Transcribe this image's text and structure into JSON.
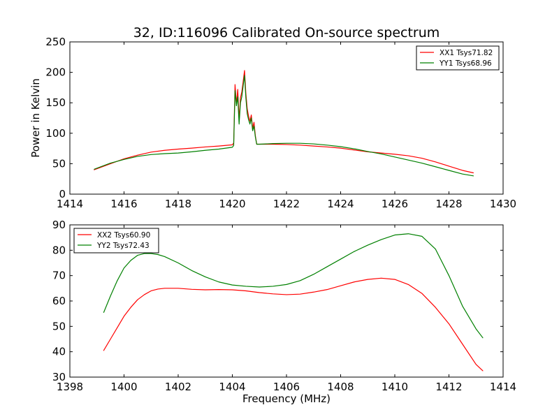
{
  "figure": {
    "background": "#ffffff"
  },
  "chart_data": [
    {
      "type": "line",
      "title": "32, ID:116096 Calibrated On-source spectrum",
      "xlabel": "",
      "ylabel": "Power in Kelvin",
      "xlim": [
        1414,
        1430
      ],
      "ylim": [
        0,
        250
      ],
      "xticks": [
        1414,
        1416,
        1418,
        1420,
        1422,
        1424,
        1426,
        1428,
        1430
      ],
      "yticks": [
        0,
        50,
        100,
        150,
        200,
        250
      ],
      "legend_position": "top-right",
      "series": [
        {
          "name": "XX1 Tsys71.82",
          "color": "#ff0000",
          "x": [
            1414.9,
            1415.5,
            1416.0,
            1416.5,
            1417.0,
            1417.5,
            1418.0,
            1418.5,
            1419.0,
            1419.5,
            1420.0,
            1420.05,
            1420.1,
            1420.15,
            1420.2,
            1420.25,
            1420.3,
            1420.35,
            1420.4,
            1420.45,
            1420.5,
            1420.55,
            1420.6,
            1420.65,
            1420.7,
            1420.75,
            1420.8,
            1420.85,
            1420.9,
            1421.0,
            1421.5,
            1422.0,
            1422.5,
            1423.0,
            1423.5,
            1424.0,
            1424.5,
            1425.0,
            1425.5,
            1426.0,
            1426.5,
            1427.0,
            1427.5,
            1428.0,
            1428.5,
            1428.9
          ],
          "values": [
            40,
            50,
            58,
            64,
            69,
            72,
            74,
            75.5,
            77.5,
            79,
            81,
            84,
            180,
            148,
            172,
            122,
            158,
            168,
            185,
            203,
            165,
            140,
            128,
            120,
            130,
            108,
            118,
            96,
            82,
            82,
            82,
            81.5,
            80.5,
            79,
            77.5,
            75.5,
            72.5,
            69.5,
            67.5,
            65.5,
            63,
            59,
            53,
            46,
            39,
            35
          ]
        },
        {
          "name": "YY1 Tsys68.96",
          "color": "#008000",
          "x": [
            1414.9,
            1415.5,
            1416.0,
            1416.5,
            1417.0,
            1417.5,
            1418.0,
            1418.5,
            1419.0,
            1419.5,
            1420.0,
            1420.05,
            1420.1,
            1420.15,
            1420.2,
            1420.25,
            1420.3,
            1420.35,
            1420.4,
            1420.45,
            1420.5,
            1420.55,
            1420.6,
            1420.65,
            1420.7,
            1420.75,
            1420.8,
            1420.85,
            1420.9,
            1421.0,
            1421.5,
            1422.0,
            1422.5,
            1423.0,
            1423.5,
            1424.0,
            1424.5,
            1425.0,
            1425.5,
            1426.0,
            1426.5,
            1427.0,
            1427.5,
            1428.0,
            1428.5,
            1428.9
          ],
          "values": [
            41,
            51,
            57,
            62,
            65,
            66.5,
            67.5,
            69.5,
            72,
            74,
            77,
            80,
            170,
            145,
            160,
            115,
            150,
            160,
            178,
            195,
            158,
            132,
            122,
            115,
            125,
            104,
            112,
            94,
            82,
            82,
            83,
            83.5,
            83.5,
            82.5,
            80.5,
            78,
            74.5,
            70,
            66,
            61,
            56,
            51,
            45,
            39,
            33,
            30
          ]
        }
      ]
    },
    {
      "type": "line",
      "title": "",
      "xlabel": "Frequency (MHz)",
      "ylabel": "",
      "xlim": [
        1398,
        1414
      ],
      "ylim": [
        30,
        90
      ],
      "xticks": [
        1398,
        1400,
        1402,
        1404,
        1406,
        1408,
        1410,
        1412,
        1414
      ],
      "yticks": [
        30,
        40,
        50,
        60,
        70,
        80,
        90
      ],
      "legend_position": "top-left",
      "series": [
        {
          "name": "XX2 Tsys60.90",
          "color": "#ff0000",
          "x": [
            1399.25,
            1399.5,
            1399.75,
            1400.0,
            1400.25,
            1400.5,
            1400.75,
            1401.0,
            1401.25,
            1401.5,
            1402.0,
            1402.5,
            1403.0,
            1403.5,
            1404.0,
            1404.5,
            1405.0,
            1405.5,
            1406.0,
            1406.5,
            1407.0,
            1407.5,
            1408.0,
            1408.5,
            1409.0,
            1409.5,
            1410.0,
            1410.5,
            1411.0,
            1411.5,
            1412.0,
            1412.5,
            1413.0,
            1413.25
          ],
          "values": [
            40.5,
            45,
            49.5,
            54,
            57.5,
            60.5,
            62.5,
            64,
            64.7,
            65,
            65,
            64.6,
            64.4,
            64.5,
            64.4,
            64,
            63.3,
            62.8,
            62.5,
            62.7,
            63.5,
            64.5,
            66,
            67.5,
            68.5,
            69,
            68.5,
            66.5,
            63,
            57.5,
            51,
            43,
            35,
            32.5
          ]
        },
        {
          "name": "YY2 Tsys72.43",
          "color": "#008000",
          "x": [
            1399.25,
            1399.5,
            1399.75,
            1400.0,
            1400.25,
            1400.5,
            1400.75,
            1401.0,
            1401.25,
            1401.5,
            1402.0,
            1402.5,
            1403.0,
            1403.5,
            1404.0,
            1404.5,
            1405.0,
            1405.5,
            1406.0,
            1406.5,
            1407.0,
            1407.5,
            1408.0,
            1408.5,
            1409.0,
            1409.5,
            1410.0,
            1410.5,
            1411.0,
            1411.5,
            1412.0,
            1412.5,
            1413.0,
            1413.25
          ],
          "values": [
            55.5,
            62,
            68,
            73,
            76,
            78,
            78.7,
            78.7,
            78.3,
            77.5,
            75,
            72,
            69.5,
            67.5,
            66.3,
            65.8,
            65.5,
            65.8,
            66.5,
            68,
            70.5,
            73.5,
            76.5,
            79.5,
            82,
            84.2,
            86,
            86.5,
            85.5,
            80.5,
            70,
            58,
            49,
            45.5
          ]
        }
      ]
    }
  ]
}
